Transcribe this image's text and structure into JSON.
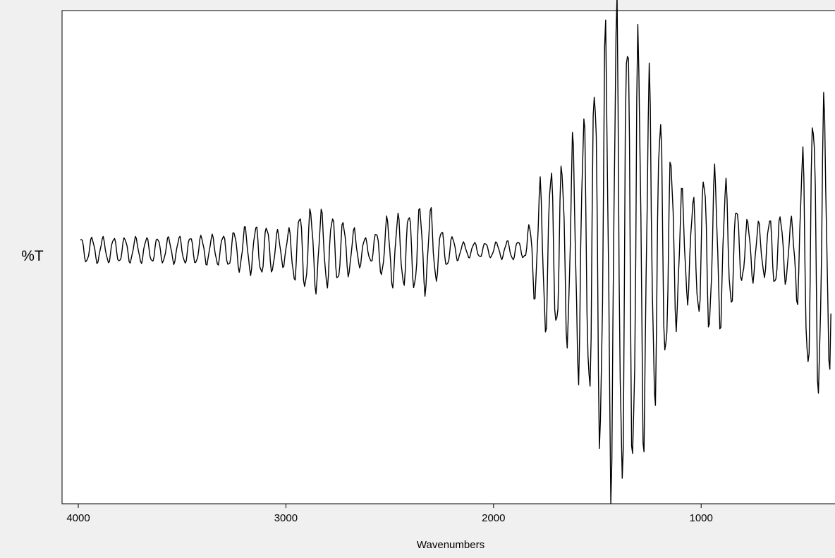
{
  "chart_data": {
    "type": "line",
    "title": "",
    "xlabel": "Wavenumbers",
    "ylabel": "%T",
    "xlim": [
      4000,
      370
    ],
    "x_reversed": true,
    "xticks": [
      4000,
      3000,
      2000,
      1000
    ],
    "ylim": [
      -1.0,
      1.0
    ],
    "y_ticks_shown": false,
    "grid": false,
    "legend": "none",
    "colors": {
      "plot_bg": "#ffffff",
      "window_bg": "#f0f0f0",
      "line": "#000000",
      "frame": "#000000"
    },
    "series": [
      {
        "sampling": "one point per 5 wavenumbers, from 3990 down to 375",
        "envelope_points": [
          [
            3990,
            0.05
          ],
          [
            3600,
            0.05
          ],
          [
            3300,
            0.06
          ],
          [
            3200,
            0.09
          ],
          [
            3100,
            0.1
          ],
          [
            3000,
            0.06
          ],
          [
            2950,
            0.14
          ],
          [
            2900,
            0.16
          ],
          [
            2850,
            0.16
          ],
          [
            2750,
            0.13
          ],
          [
            2600,
            0.04
          ],
          [
            2500,
            0.14
          ],
          [
            2450,
            0.14
          ],
          [
            2350,
            0.17
          ],
          [
            2300,
            0.16
          ],
          [
            2250,
            0.08
          ],
          [
            2150,
            0.03
          ],
          [
            2000,
            0.03
          ],
          [
            1900,
            0.04
          ],
          [
            1850,
            0.03
          ],
          [
            1800,
            0.2
          ],
          [
            1750,
            0.33
          ],
          [
            1700,
            0.33
          ],
          [
            1650,
            0.36
          ],
          [
            1600,
            0.48
          ],
          [
            1550,
            0.56
          ],
          [
            1500,
            0.75
          ],
          [
            1450,
            0.9
          ],
          [
            1400,
            0.97
          ],
          [
            1350,
            0.93
          ],
          [
            1300,
            0.85
          ],
          [
            1250,
            0.68
          ],
          [
            1200,
            0.56
          ],
          [
            1150,
            0.38
          ],
          [
            1100,
            0.25
          ],
          [
            1050,
            0.18
          ],
          [
            1000,
            0.3
          ],
          [
            950,
            0.32
          ],
          [
            900,
            0.3
          ],
          [
            850,
            0.22
          ],
          [
            800,
            0.12
          ],
          [
            750,
            0.12
          ],
          [
            700,
            0.1
          ],
          [
            650,
            0.15
          ],
          [
            600,
            0.13
          ],
          [
            550,
            0.12
          ],
          [
            500,
            0.48
          ],
          [
            450,
            0.58
          ],
          [
            400,
            0.58
          ],
          [
            375,
            0.4
          ]
        ],
        "cycles_per_1000_wavenumbers": 19
      }
    ]
  }
}
